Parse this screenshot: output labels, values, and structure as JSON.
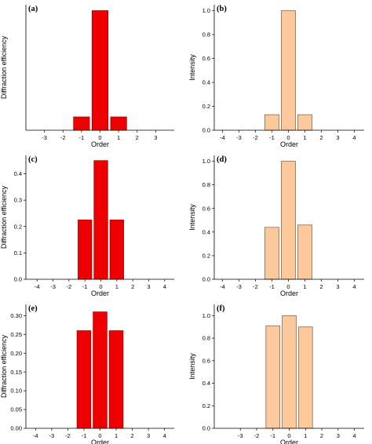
{
  "colors": {
    "red_fill": "#ee0000",
    "red_stroke": "#b00000",
    "peach_fill": "#fbc99b",
    "peach_stroke": "#8a6a4a"
  },
  "chart_data": [
    {
      "type": "bar",
      "panel_label": "(a)",
      "xlabel": "Order",
      "ylabel": "Diffraction efficiency",
      "x": [
        -1,
        0,
        1
      ],
      "values": [
        0.09,
        0.81,
        0.09
      ],
      "xlim": [
        -4,
        4
      ],
      "xticks": [
        -3,
        -2,
        -1,
        0,
        1,
        2,
        3
      ],
      "xtick_labels": [
        "-3",
        "-2",
        "-1",
        "0",
        "1",
        "2",
        "3"
      ],
      "ylim": [
        0,
        0.85
      ],
      "yticks": [],
      "ytick_labels": [],
      "color": "red",
      "grid": false
    },
    {
      "type": "bar",
      "panel_label": "(b)",
      "xlabel": "Order",
      "ylabel": "Intensity",
      "x": [
        -1,
        0,
        1
      ],
      "values": [
        0.13,
        1.0,
        0.13
      ],
      "xlim": [
        -4.5,
        4.6
      ],
      "xticks": [
        -4,
        -3,
        -2,
        -1,
        0,
        1,
        2,
        3,
        4
      ],
      "xtick_labels": [
        "-4",
        "-3",
        "-2",
        "-1",
        "0",
        "1",
        "2",
        "3",
        "4"
      ],
      "ylim": [
        0,
        1.05
      ],
      "yticks": [
        0.0,
        0.2,
        0.4,
        0.6,
        0.8,
        1.0
      ],
      "ytick_labels": [
        "0.0",
        "0.2",
        "0.4",
        "0.6",
        "0.8",
        "1.0"
      ],
      "color": "peach",
      "grid": false
    },
    {
      "type": "bar",
      "panel_label": "(c)",
      "xlabel": "Order",
      "ylabel": "Diffraction efficiency",
      "x": [
        -1,
        0,
        1
      ],
      "values": [
        0.225,
        0.45,
        0.225
      ],
      "xlim": [
        -4.7,
        4.6
      ],
      "xticks": [
        -4,
        -3,
        -2,
        -1,
        0,
        1,
        2,
        3,
        4
      ],
      "xtick_labels": [
        "-4",
        "-3",
        "-2",
        "-1",
        "0",
        "1",
        "2",
        "3",
        "4"
      ],
      "ylim": [
        0,
        0.47
      ],
      "yticks": [
        0.0,
        0.1,
        0.2,
        0.3,
        0.4
      ],
      "ytick_labels": [
        "0.0",
        "0.1",
        "0.2",
        "0.3",
        "0.4"
      ],
      "color": "red",
      "grid": false
    },
    {
      "type": "bar",
      "panel_label": "(d)",
      "xlabel": "Order",
      "ylabel": "Intensity",
      "x": [
        -1,
        0,
        1
      ],
      "values": [
        0.44,
        1.0,
        0.46
      ],
      "xlim": [
        -4.5,
        4.6
      ],
      "xticks": [
        -4,
        -3,
        -2,
        -1,
        0,
        1,
        2,
        3,
        4
      ],
      "xtick_labels": [
        "-4",
        "-3",
        "-2",
        "-1",
        "0",
        "1",
        "2",
        "3",
        "4"
      ],
      "ylim": [
        0,
        1.05
      ],
      "yticks": [
        0.0,
        0.2,
        0.4,
        0.6,
        0.8,
        1.0
      ],
      "ytick_labels": [
        "0.0",
        "0.2",
        "0.4",
        "0.6",
        "0.8",
        "1.0"
      ],
      "color": "peach",
      "grid": false
    },
    {
      "type": "bar",
      "panel_label": "(e)",
      "xlabel": "Order",
      "ylabel": "Diffraction efficiency",
      "x": [
        -1,
        0,
        1
      ],
      "values": [
        0.26,
        0.31,
        0.26
      ],
      "xlim": [
        -4.6,
        4.6
      ],
      "xticks": [
        -4,
        -3,
        -2,
        -1,
        0,
        1,
        2,
        3,
        4
      ],
      "xtick_labels": [
        "-4",
        "-3",
        "-2",
        "-1",
        "0",
        "1",
        "2",
        "3",
        "4"
      ],
      "ylim": [
        0,
        0.33
      ],
      "yticks": [
        0.0,
        0.05,
        0.1,
        0.15,
        0.2,
        0.25,
        0.3
      ],
      "ytick_labels": [
        "0.00",
        "0.05",
        "0.10",
        "0.15",
        "0.20",
        "0.25",
        "0.30"
      ],
      "color": "red",
      "grid": false
    },
    {
      "type": "bar",
      "panel_label": "(f)",
      "xlabel": "Order",
      "ylabel": "Intensity",
      "x": [
        -1,
        0,
        1
      ],
      "values": [
        0.91,
        1.0,
        0.9
      ],
      "xlim": [
        -4.6,
        4.6
      ],
      "xticks": [
        -3,
        -2,
        -1,
        0,
        1,
        2,
        3,
        4
      ],
      "xtick_labels": [
        "-3",
        "-2",
        "-1",
        "0",
        "1",
        "2",
        "3",
        "4"
      ],
      "ylim": [
        0,
        1.1
      ],
      "yticks": [
        0.0,
        0.2,
        0.4,
        0.6,
        0.8,
        1.0
      ],
      "ytick_labels": [
        "0.0",
        "0.2",
        "0.4",
        "0.6",
        "0.8",
        "1.0"
      ],
      "color": "peach",
      "grid": false
    }
  ]
}
